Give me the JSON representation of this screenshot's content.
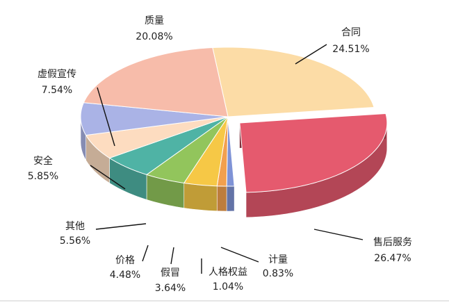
{
  "chart_data": {
    "type": "pie",
    "categories": [
      "合同",
      "售后服务",
      "计量",
      "人格权益",
      "假冒",
      "价格",
      "其他",
      "安全",
      "虚假宣传",
      "质量"
    ],
    "values": [
      24.51,
      26.47,
      0.83,
      1.04,
      3.64,
      4.48,
      5.56,
      5.85,
      7.54,
      20.08
    ],
    "value_labels": [
      "24.51%",
      "26.47%",
      "0.83%",
      "1.04%",
      "3.64%",
      "4.48%",
      "5.56%",
      "5.85%",
      "7.54%",
      "20.08%"
    ],
    "colors": [
      "#fcdca6",
      "#e55a6e",
      "#7f93d6",
      "#f2a04e",
      "#f6c846",
      "#92c55c",
      "#4fb3a5",
      "#fddcc0",
      "#aab3e6",
      "#f7bcaa"
    ],
    "exploded": "售后服务"
  }
}
